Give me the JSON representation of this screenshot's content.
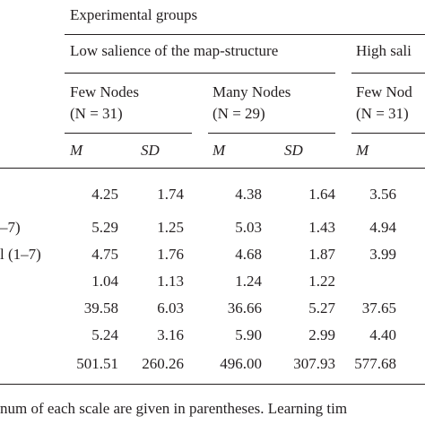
{
  "table": {
    "spanner_title": "Experimental groups",
    "group_low_title": "Low salience of the map-structure",
    "group_high_title": "High sali",
    "subgroups": [
      {
        "name": "Few Nodes",
        "n": "(N = 31)"
      },
      {
        "name": "Many Nodes",
        "n": "(N = 29)"
      },
      {
        "name": "Few Nod",
        "n": "(N = 31)"
      }
    ],
    "stat_headers": {
      "mean": "M",
      "sd": "SD"
    },
    "row_labels": [
      "",
      "–7)",
      "l (1–7)",
      "",
      "",
      "",
      ""
    ],
    "rows": [
      [
        "4.25",
        "1.74",
        "4.38",
        "1.64",
        "3.56"
      ],
      [
        "5.29",
        "1.25",
        "5.03",
        "1.43",
        "4.94"
      ],
      [
        "4.75",
        "1.76",
        "4.68",
        "1.87",
        "3.99"
      ],
      [
        "1.04",
        "1.13",
        "1.24",
        "1.22",
        ""
      ],
      [
        "39.58",
        "6.03",
        "36.66",
        "5.27",
        "37.65"
      ],
      [
        "5.24",
        "3.16",
        "5.90",
        "2.99",
        "4.40"
      ],
      [
        "501.51",
        "260.26",
        "496.00",
        "307.93",
        "577.68"
      ]
    ],
    "footnote": "num of each scale are given in parentheses. Learning tim"
  }
}
